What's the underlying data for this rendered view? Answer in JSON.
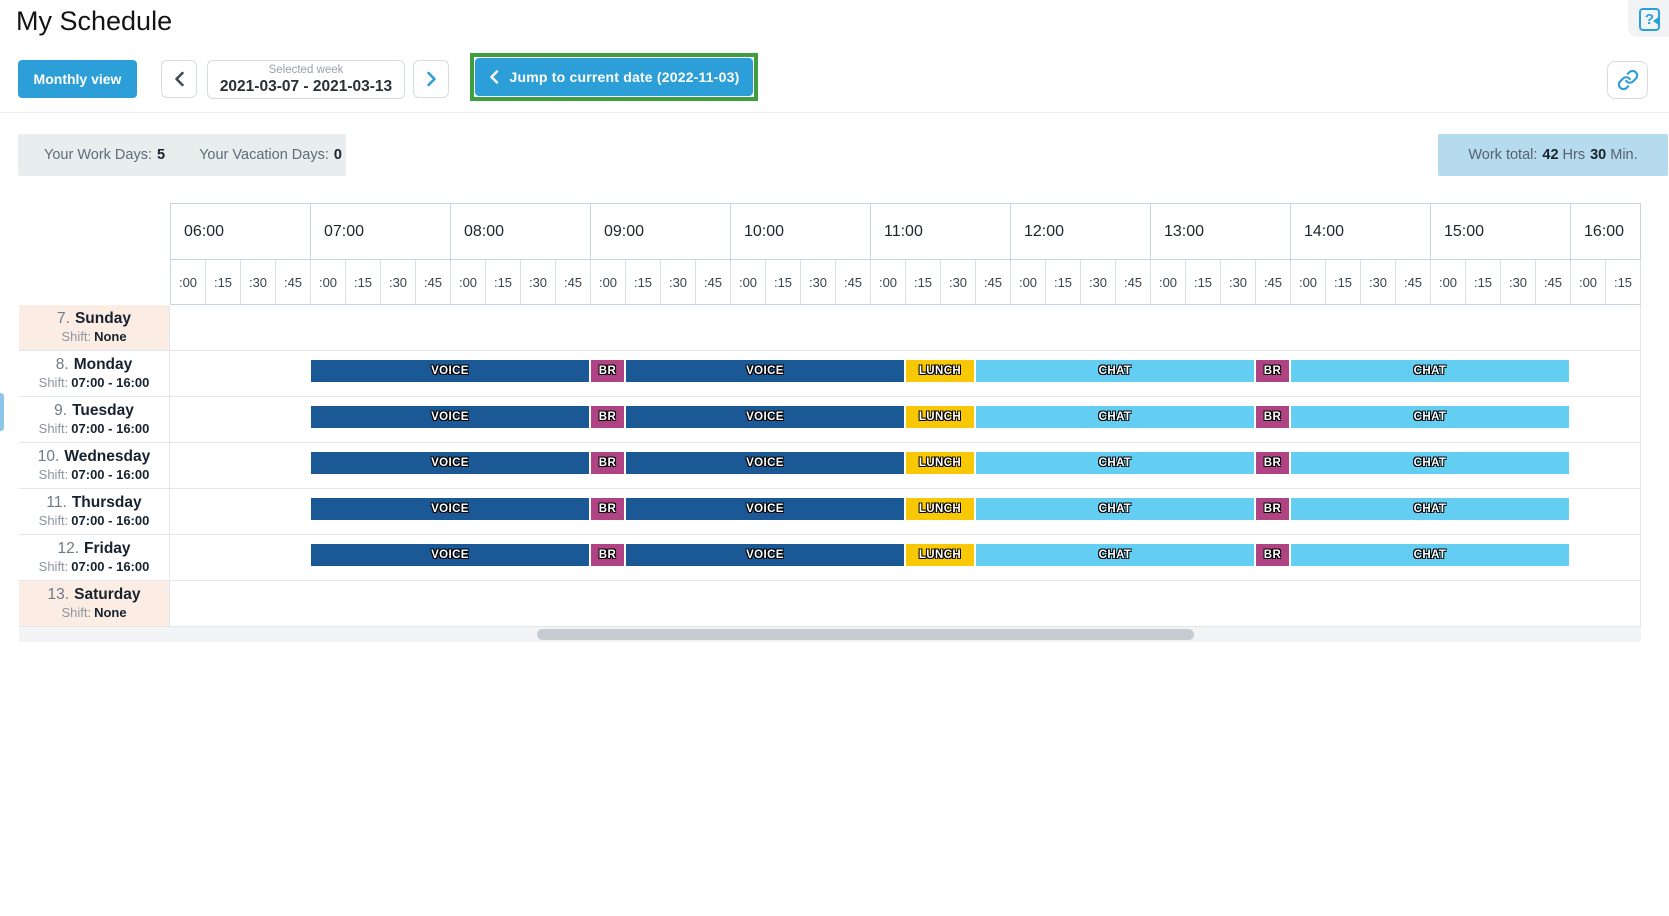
{
  "page": {
    "title": "My Schedule"
  },
  "toolbar": {
    "monthly_view": "Monthly view",
    "selected_week": {
      "label": "Selected week",
      "value": "2021-03-07 - 2021-03-13"
    },
    "jump_label": "Jump to current date (2022-11-03)",
    "icons": {
      "prev": "chevron-left",
      "next": "chevron-right",
      "jump": "chevron-left",
      "link": "link",
      "help": "question-mark"
    }
  },
  "stats": {
    "work_days_label": "Your Work Days:",
    "work_days_value": "5",
    "vacation_days_label": "Your Vacation Days:",
    "vacation_days_value": "0",
    "work_total": {
      "label": "Work total:",
      "hours": "42",
      "hours_unit": "Hrs",
      "minutes": "30",
      "minutes_unit": "Min."
    }
  },
  "colors": {
    "accent_blue": "#2d9fd8",
    "annotation_green": "#3f9e3e",
    "voice": "#1a5896",
    "break": "#b04384",
    "lunch": "#f8c804",
    "chat": "#63cef2",
    "day_off_bg": "#fcede4",
    "stats_bg": "#e8edee",
    "work_total_bg": "#b6daee"
  },
  "schedule": {
    "timeline_start": "06:00",
    "shift_label": "Shift:",
    "hours": [
      {
        "label": "06:00",
        "quarters": [
          ":00",
          ":15",
          ":30",
          ":45"
        ]
      },
      {
        "label": "07:00",
        "quarters": [
          ":00",
          ":15",
          ":30",
          ":45"
        ]
      },
      {
        "label": "08:00",
        "quarters": [
          ":00",
          ":15",
          ":30",
          ":45"
        ]
      },
      {
        "label": "09:00",
        "quarters": [
          ":00",
          ":15",
          ":30",
          ":45"
        ]
      },
      {
        "label": "10:00",
        "quarters": [
          ":00",
          ":15",
          ":30",
          ":45"
        ]
      },
      {
        "label": "11:00",
        "quarters": [
          ":00",
          ":15",
          ":30",
          ":45"
        ]
      },
      {
        "label": "12:00",
        "quarters": [
          ":00",
          ":15",
          ":30",
          ":45"
        ]
      },
      {
        "label": "13:00",
        "quarters": [
          ":00",
          ":15",
          ":30",
          ":45"
        ]
      },
      {
        "label": "14:00",
        "quarters": [
          ":00",
          ":15",
          ":30",
          ":45"
        ]
      },
      {
        "label": "15:00",
        "quarters": [
          ":00",
          ":15",
          ":30",
          ":45"
        ]
      },
      {
        "label": "16:00",
        "quarters": [
          ":00",
          ":15"
        ]
      }
    ],
    "days": [
      {
        "number": "7.",
        "name": "Sunday",
        "shift": "None",
        "day_off": true,
        "segments": []
      },
      {
        "number": "8.",
        "name": "Monday",
        "shift": "07:00 - 16:00",
        "day_off": false,
        "segments": [
          {
            "label": "VOICE",
            "type": "voice",
            "start": "07:00",
            "end": "09:00"
          },
          {
            "label": "BR",
            "type": "break",
            "start": "09:00",
            "end": "09:15"
          },
          {
            "label": "VOICE",
            "type": "voice",
            "start": "09:15",
            "end": "11:15"
          },
          {
            "label": "LUNCH",
            "type": "lunch",
            "start": "11:15",
            "end": "11:45"
          },
          {
            "label": "CHAT",
            "type": "chat",
            "start": "11:45",
            "end": "13:45"
          },
          {
            "label": "BR",
            "type": "break",
            "start": "13:45",
            "end": "14:00"
          },
          {
            "label": "CHAT",
            "type": "chat",
            "start": "14:00",
            "end": "16:00"
          }
        ]
      },
      {
        "number": "9.",
        "name": "Tuesday",
        "shift": "07:00 - 16:00",
        "day_off": false,
        "segments": [
          {
            "label": "VOICE",
            "type": "voice",
            "start": "07:00",
            "end": "09:00"
          },
          {
            "label": "BR",
            "type": "break",
            "start": "09:00",
            "end": "09:15"
          },
          {
            "label": "VOICE",
            "type": "voice",
            "start": "09:15",
            "end": "11:15"
          },
          {
            "label": "LUNCH",
            "type": "lunch",
            "start": "11:15",
            "end": "11:45"
          },
          {
            "label": "CHAT",
            "type": "chat",
            "start": "11:45",
            "end": "13:45"
          },
          {
            "label": "BR",
            "type": "break",
            "start": "13:45",
            "end": "14:00"
          },
          {
            "label": "CHAT",
            "type": "chat",
            "start": "14:00",
            "end": "16:00"
          }
        ]
      },
      {
        "number": "10.",
        "name": "Wednesday",
        "shift": "07:00 - 16:00",
        "day_off": false,
        "segments": [
          {
            "label": "VOICE",
            "type": "voice",
            "start": "07:00",
            "end": "09:00"
          },
          {
            "label": "BR",
            "type": "break",
            "start": "09:00",
            "end": "09:15"
          },
          {
            "label": "VOICE",
            "type": "voice",
            "start": "09:15",
            "end": "11:15"
          },
          {
            "label": "LUNCH",
            "type": "lunch",
            "start": "11:15",
            "end": "11:45"
          },
          {
            "label": "CHAT",
            "type": "chat",
            "start": "11:45",
            "end": "13:45"
          },
          {
            "label": "BR",
            "type": "break",
            "start": "13:45",
            "end": "14:00"
          },
          {
            "label": "CHAT",
            "type": "chat",
            "start": "14:00",
            "end": "16:00"
          }
        ]
      },
      {
        "number": "11.",
        "name": "Thursday",
        "shift": "07:00 - 16:00",
        "day_off": false,
        "segments": [
          {
            "label": "VOICE",
            "type": "voice",
            "start": "07:00",
            "end": "09:00"
          },
          {
            "label": "BR",
            "type": "break",
            "start": "09:00",
            "end": "09:15"
          },
          {
            "label": "VOICE",
            "type": "voice",
            "start": "09:15",
            "end": "11:15"
          },
          {
            "label": "LUNCH",
            "type": "lunch",
            "start": "11:15",
            "end": "11:45"
          },
          {
            "label": "CHAT",
            "type": "chat",
            "start": "11:45",
            "end": "13:45"
          },
          {
            "label": "BR",
            "type": "break",
            "start": "13:45",
            "end": "14:00"
          },
          {
            "label": "CHAT",
            "type": "chat",
            "start": "14:00",
            "end": "16:00"
          }
        ]
      },
      {
        "number": "12.",
        "name": "Friday",
        "shift": "07:00 - 16:00",
        "day_off": false,
        "segments": [
          {
            "label": "VOICE",
            "type": "voice",
            "start": "07:00",
            "end": "09:00"
          },
          {
            "label": "BR",
            "type": "break",
            "start": "09:00",
            "end": "09:15"
          },
          {
            "label": "VOICE",
            "type": "voice",
            "start": "09:15",
            "end": "11:15"
          },
          {
            "label": "LUNCH",
            "type": "lunch",
            "start": "11:15",
            "end": "11:45"
          },
          {
            "label": "CHAT",
            "type": "chat",
            "start": "11:45",
            "end": "13:45"
          },
          {
            "label": "BR",
            "type": "break",
            "start": "13:45",
            "end": "14:00"
          },
          {
            "label": "CHAT",
            "type": "chat",
            "start": "14:00",
            "end": "16:00"
          }
        ]
      },
      {
        "number": "13.",
        "name": "Saturday",
        "shift": "None",
        "day_off": true,
        "segments": []
      }
    ]
  }
}
